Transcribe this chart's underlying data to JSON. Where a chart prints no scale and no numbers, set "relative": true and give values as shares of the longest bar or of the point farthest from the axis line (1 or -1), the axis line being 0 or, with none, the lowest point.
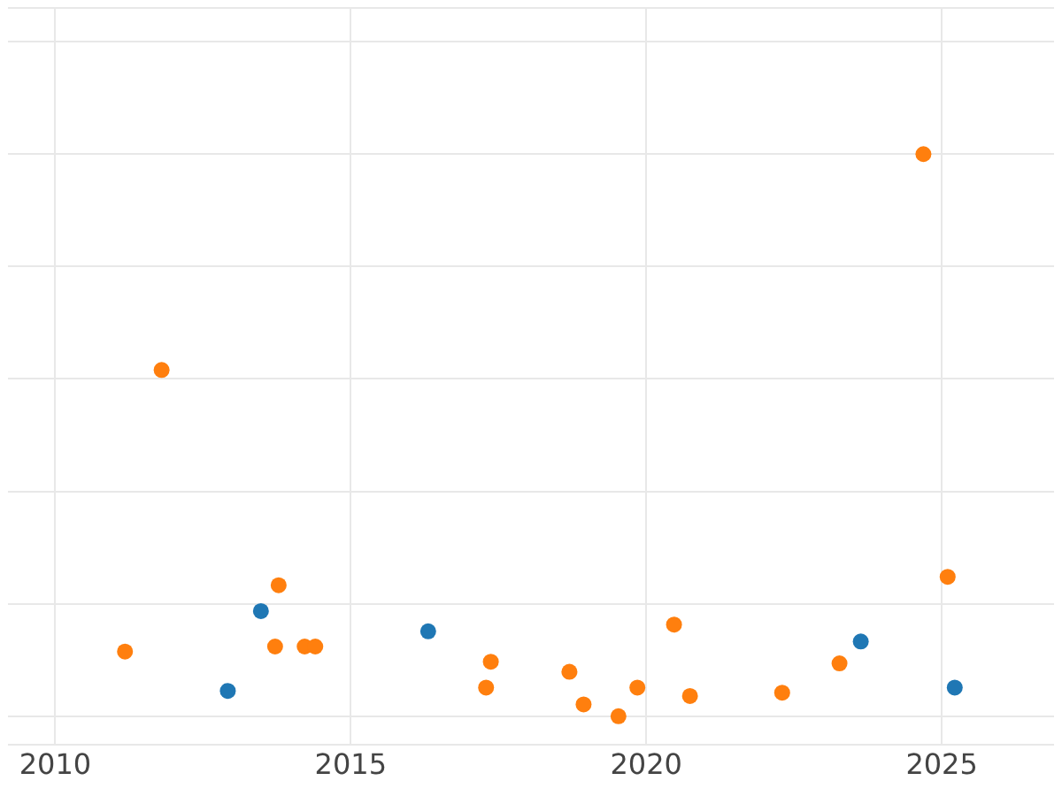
{
  "chart_data": {
    "type": "scatter",
    "relative": true,
    "xlim": [
      2009.2,
      2026.9
    ],
    "xticks": [
      2010,
      2015,
      2020,
      2025
    ],
    "grid": true,
    "legend": false,
    "marker": "circle",
    "tick_labels": "x",
    "series": [
      {
        "color": "#ff7f0e",
        "x": [
          2011.18,
          2011.8,
          2013.72,
          2013.78,
          2014.22,
          2014.4,
          2017.29,
          2017.37,
          2018.7,
          2018.94,
          2019.53,
          2019.85,
          2020.47,
          2020.74,
          2022.3,
          2023.27,
          2024.69,
          2025.1
        ],
        "values": [
          0.115,
          0.616,
          0.124,
          0.233,
          0.124,
          0.124,
          0.051,
          0.097,
          0.079,
          0.021,
          0,
          0.051,
          0.163,
          0.036,
          0.042,
          0.094,
          1,
          0.248
        ]
      },
      {
        "color": "#1f77b4",
        "x": [
          2012.92,
          2013.48,
          2016.31,
          2023.63,
          2025.22
        ],
        "values": [
          0.045,
          0.187,
          0.151,
          0.133,
          0.051
        ]
      }
    ]
  }
}
